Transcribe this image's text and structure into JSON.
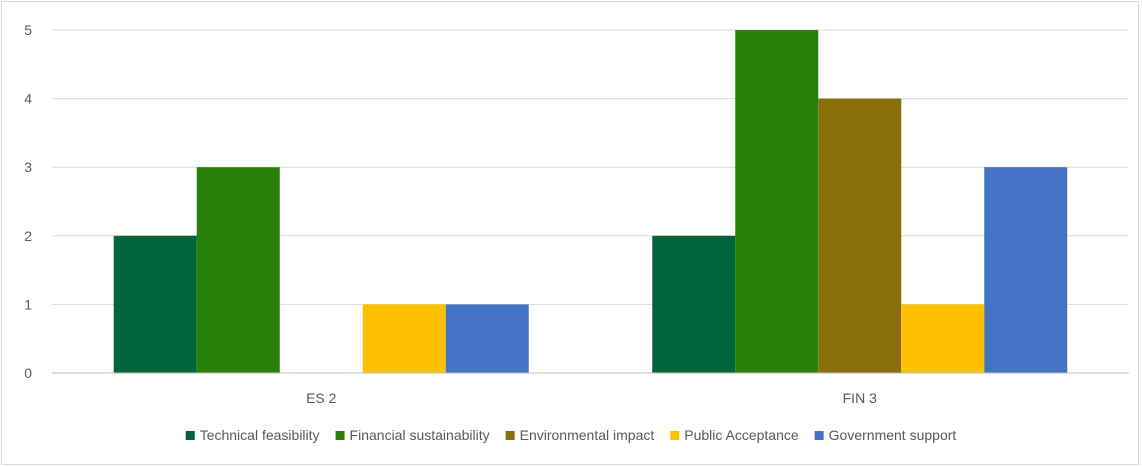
{
  "chart_data": {
    "type": "bar",
    "categories": [
      "ES 2",
      "FIN 3"
    ],
    "series": [
      {
        "name": "Technical feasibility",
        "values": [
          2,
          2
        ],
        "color": "#00643c"
      },
      {
        "name": "Financial sustainability",
        "values": [
          3,
          5
        ],
        "color": "#28820a"
      },
      {
        "name": "Environmental impact",
        "values": [
          0,
          4
        ],
        "color": "#896e0a"
      },
      {
        "name": "Public Acceptance",
        "values": [
          1,
          1
        ],
        "color": "#ffc000"
      },
      {
        "name": "Government support",
        "values": [
          1,
          3
        ],
        "color": "#4472c4"
      }
    ],
    "yticks": [
      "0",
      "1",
      "2",
      "3",
      "4",
      "5"
    ],
    "ylim": [
      0,
      5
    ],
    "grid": true,
    "legend_position": "bottom",
    "gridline_color": "#d9d9d9",
    "axis_color": "#bfbfbf",
    "text_color": "#595959"
  }
}
